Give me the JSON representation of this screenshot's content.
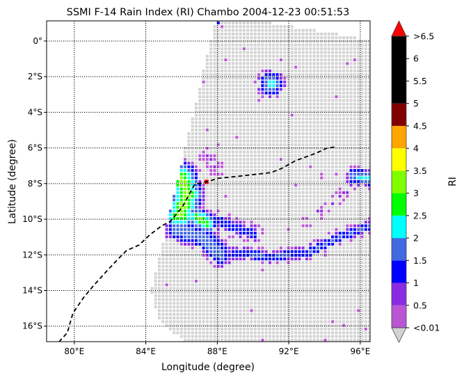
{
  "chart_data": {
    "type": "heatmap",
    "title": "SSMI F-14 Rain Index (RI) Chambo 2004-12-23 00:51:53",
    "xlabel": "Longitude (degree)",
    "ylabel": "Latitude (degree)",
    "xlim": [
      78.45,
      96.55
    ],
    "ylim": [
      -16.87,
      1.13
    ],
    "grid": true,
    "x_ticks": [
      {
        "value": 80,
        "label": "80°E"
      },
      {
        "value": 84,
        "label": "84°E"
      },
      {
        "value": 88,
        "label": "88°E"
      },
      {
        "value": 92,
        "label": "92°E"
      },
      {
        "value": 96,
        "label": "96°E"
      }
    ],
    "y_ticks": [
      {
        "value": 0,
        "label": "0°"
      },
      {
        "value": -2,
        "label": "2°S"
      },
      {
        "value": -4,
        "label": "4°S"
      },
      {
        "value": -6,
        "label": "6°S"
      },
      {
        "value": -8,
        "label": "8°S"
      },
      {
        "value": -10,
        "label": "10°S"
      },
      {
        "value": -12,
        "label": "12°S"
      },
      {
        "value": -14,
        "label": "14°S"
      },
      {
        "value": -16,
        "label": "16°S"
      }
    ],
    "colorbar": {
      "label": "RI",
      "placement": "right",
      "range": [
        0,
        6.5
      ],
      "under_color": "#d3d3d3",
      "over_color": "#ff0000",
      "bins": [
        {
          "from": 0.01,
          "to": 0.5,
          "color": "#ba55d3"
        },
        {
          "from": 0.5,
          "to": 1,
          "color": "#8a2be2"
        },
        {
          "from": 1,
          "to": 1.5,
          "color": "#0000ff"
        },
        {
          "from": 1.5,
          "to": 2,
          "color": "#4169e1"
        },
        {
          "from": 2,
          "to": 2.5,
          "color": "#00ffff"
        },
        {
          "from": 2.5,
          "to": 3,
          "color": "#00ff00"
        },
        {
          "from": 3,
          "to": 3.5,
          "color": "#7fff00"
        },
        {
          "from": 3.5,
          "to": 4,
          "color": "#ffff00"
        },
        {
          "from": 4,
          "to": 4.5,
          "color": "#ffa500"
        },
        {
          "from": 4.5,
          "to": 5,
          "color": "#800000"
        },
        {
          "from": 5,
          "to": 6.5,
          "color": "#000000"
        }
      ],
      "ticks": [
        {
          "value": 0,
          "label": "<0.01"
        },
        {
          "value": 0.5,
          "label": "0.5"
        },
        {
          "value": 1,
          "label": "1"
        },
        {
          "value": 1.5,
          "label": "1.5"
        },
        {
          "value": 2,
          "label": "2"
        },
        {
          "value": 2.5,
          "label": "2.5"
        },
        {
          "value": 3,
          "label": "3"
        },
        {
          "value": 3.5,
          "label": "3.5"
        },
        {
          "value": 4,
          "label": "4"
        },
        {
          "value": 4.5,
          "label": "4.5"
        },
        {
          "value": 5,
          "label": "5"
        },
        {
          "value": 5.5,
          "label": "5.5"
        },
        {
          "value": 6,
          "label": "6"
        },
        {
          "value": 6.5,
          "label": ">6.5"
        }
      ]
    },
    "swath_outline": [
      [
        87.9,
        1.13
      ],
      [
        84.32,
        -13.9
      ],
      [
        84.4,
        -14.7
      ],
      [
        84.8,
        -15.7
      ],
      [
        85.5,
        -16.4
      ],
      [
        86.3,
        -16.87
      ],
      [
        96.55,
        -16.87
      ],
      [
        96.55,
        0.04
      ],
      [
        94.5,
        0.43
      ],
      [
        92.2,
        0.82
      ],
      [
        90.2,
        1.13
      ]
    ],
    "rain_features": [
      {
        "path": [
          [
            86.0,
            -7.7
          ],
          [
            86.3,
            -8.6
          ],
          [
            85.9,
            -9.8
          ]
        ],
        "width": 1.1,
        "peak": 3.3
      },
      {
        "path": [
          [
            86.9,
            -9.9
          ],
          [
            87.4,
            -10.2
          ]
        ],
        "width": 0.7,
        "peak": 3.1
      },
      {
        "path": [
          [
            85.7,
            -10.6
          ],
          [
            87.2,
            -11.0
          ],
          [
            88.2,
            -12.0
          ]
        ],
        "width": 0.8,
        "peak": 2.0
      },
      {
        "path": [
          [
            85.9,
            -7.2
          ],
          [
            86.6,
            -7.6
          ]
        ],
        "width": 0.6,
        "peak": 1.8
      },
      {
        "path": [
          [
            87.8,
            -10.0
          ],
          [
            89.0,
            -10.5
          ],
          [
            90.0,
            -10.8
          ]
        ],
        "width": 0.6,
        "peak": 1.4
      },
      {
        "path": [
          [
            89.0,
            -11.9
          ],
          [
            91.0,
            -12.1
          ],
          [
            93.0,
            -11.9
          ],
          [
            94.8,
            -11.0
          ],
          [
            96.5,
            -10.4
          ]
        ],
        "width": 0.45,
        "peak": 1.6
      },
      {
        "path": [
          [
            93.0,
            -10.2
          ],
          [
            94.5,
            -9.0
          ],
          [
            95.5,
            -8.2
          ]
        ],
        "width": 0.35,
        "peak": 0.7
      },
      {
        "path": [
          [
            95.7,
            -7.6
          ],
          [
            96.5,
            -7.7
          ]
        ],
        "width": 0.6,
        "peak": 2.2
      },
      {
        "path": [
          [
            91.0,
            -2.4
          ]
        ],
        "width": 0.9,
        "peak": 2.4
      },
      {
        "path": [
          [
            88.0,
            1.0
          ]
        ],
        "width": 0.4,
        "peak": 1.3
      },
      {
        "path": [
          [
            87.5,
            -6.5
          ],
          [
            88.0,
            -7.2
          ]
        ],
        "width": 0.5,
        "peak": 0.6
      }
    ],
    "storm_track": {
      "style": "dashed",
      "color": "#000000",
      "points": [
        [
          79.14,
          -16.88
        ],
        [
          79.61,
          -16.37
        ],
        [
          79.92,
          -15.27
        ],
        [
          80.51,
          -14.41
        ],
        [
          81.09,
          -13.71
        ],
        [
          81.87,
          -12.85
        ],
        [
          82.45,
          -12.23
        ],
        [
          82.92,
          -11.76
        ],
        [
          83.62,
          -11.45
        ],
        [
          84.2,
          -10.9
        ],
        [
          84.86,
          -10.39
        ],
        [
          85.37,
          -10.12
        ],
        [
          86.03,
          -9.34
        ],
        [
          86.73,
          -8.05
        ],
        [
          87.43,
          -7.89
        ],
        [
          88.09,
          -7.7
        ],
        [
          89.26,
          -7.58
        ],
        [
          91.01,
          -7.38
        ],
        [
          91.6,
          -7.15
        ],
        [
          92.37,
          -6.72
        ],
        [
          93.54,
          -6.29
        ],
        [
          94.12,
          -6.02
        ],
        [
          94.59,
          -5.94
        ]
      ]
    },
    "max_point": {
      "lon": 87.4,
      "lat": -7.9,
      "ri": 7
    }
  }
}
